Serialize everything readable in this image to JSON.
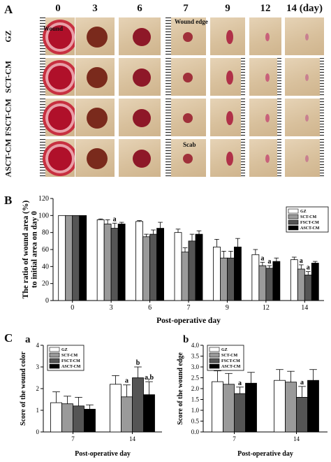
{
  "panel_a": {
    "letter": "A",
    "days": [
      "0",
      "3",
      "6",
      "7",
      "9",
      "12",
      "14 (day)"
    ],
    "rows": [
      "GZ",
      "SCT-CM",
      "FSCT-CM",
      "ASCT-CM"
    ],
    "annotations": {
      "wound": "Wound",
      "wound_edge": "Wound edge",
      "scab": "Scab"
    }
  },
  "panel_b": {
    "letter": "B"
  },
  "panel_c": {
    "letter": "C",
    "sub_a": "a",
    "sub_b": "b"
  },
  "colors": {
    "GZ": "#ffffff",
    "SCT-CM": "#9a9a9a",
    "FSCT-CM": "#555555",
    "ASCT-CM": "#000000"
  },
  "chart_data": [
    {
      "id": "B",
      "type": "bar",
      "categories": [
        "0",
        "3",
        "6",
        "7",
        "9",
        "12",
        "14"
      ],
      "series": [
        {
          "name": "GZ",
          "values": [
            100,
            95,
            93,
            80,
            63,
            54,
            48
          ],
          "errors": [
            0,
            1,
            1,
            4,
            9,
            6,
            3
          ]
        },
        {
          "name": "SCT-CM",
          "values": [
            100,
            90,
            75,
            57,
            50,
            41,
            37
          ],
          "errors": [
            0,
            5,
            3,
            5,
            8,
            4,
            5
          ]
        },
        {
          "name": "FSCT-CM",
          "values": [
            100,
            85,
            78,
            70,
            50,
            38,
            30
          ],
          "errors": [
            0,
            6,
            5,
            8,
            8,
            3,
            4
          ]
        },
        {
          "name": "ASCT-CM",
          "values": [
            100,
            90,
            85,
            78,
            63,
            46,
            44
          ],
          "errors": [
            0,
            2,
            7,
            4,
            10,
            4,
            2
          ]
        }
      ],
      "annotations": [
        {
          "category": "3",
          "series": "FSCT-CM",
          "text": "a"
        },
        {
          "category": "12",
          "series": "SCT-CM",
          "text": "a"
        },
        {
          "category": "12",
          "series": "FSCT-CM",
          "text": "a"
        },
        {
          "category": "14",
          "series": "SCT-CM",
          "text": "a"
        },
        {
          "category": "14",
          "series": "FSCT-CM",
          "text": "a"
        }
      ],
      "xlabel": "Post-operative day",
      "ylabel_lines": [
        "The ratio of wound area (%)",
        "to initial area on day 0"
      ],
      "ylim": [
        0,
        120
      ],
      "yticks": [
        0,
        20,
        40,
        60,
        80,
        100,
        120
      ],
      "legend": "top-right"
    },
    {
      "id": "Ca",
      "type": "bar",
      "categories": [
        "7",
        "14"
      ],
      "series": [
        {
          "name": "GZ",
          "values": [
            1.35,
            2.2
          ],
          "errors": [
            0.5,
            0.4
          ]
        },
        {
          "name": "SCT-CM",
          "values": [
            1.3,
            1.62
          ],
          "errors": [
            0.35,
            0.55
          ]
        },
        {
          "name": "FSCT-CM",
          "values": [
            1.2,
            2.5
          ],
          "errors": [
            0.4,
            0.5
          ]
        },
        {
          "name": "ASCT-CM",
          "values": [
            1.05,
            1.72
          ],
          "errors": [
            0.2,
            0.6
          ]
        }
      ],
      "annotations": [
        {
          "category": "14",
          "series": "SCT-CM",
          "text": "a"
        },
        {
          "category": "14",
          "series": "FSCT-CM",
          "text": "b"
        },
        {
          "category": "14",
          "series": "ASCT-CM",
          "text": "a,b"
        }
      ],
      "xlabel": "Post-operative day",
      "ylabel": "Score of the wound color",
      "ylim": [
        0,
        4
      ],
      "yticks": [
        0,
        1,
        2,
        3,
        4
      ],
      "legend": "top-left"
    },
    {
      "id": "Cb",
      "type": "bar",
      "categories": [
        "7",
        "14"
      ],
      "series": [
        {
          "name": "GZ",
          "values": [
            2.32,
            2.38
          ],
          "errors": [
            0.5,
            0.5
          ]
        },
        {
          "name": "SCT-CM",
          "values": [
            2.2,
            2.3
          ],
          "errors": [
            0.5,
            0.5
          ]
        },
        {
          "name": "FSCT-CM",
          "values": [
            1.77,
            1.6
          ],
          "errors": [
            0.3,
            0.5
          ]
        },
        {
          "name": "ASCT-CM",
          "values": [
            2.25,
            2.38
          ],
          "errors": [
            0.5,
            0.5
          ]
        }
      ],
      "annotations": [
        {
          "category": "7",
          "series": "FSCT-CM",
          "text": "a"
        },
        {
          "category": "14",
          "series": "FSCT-CM",
          "text": "a"
        }
      ],
      "xlabel": "Post-operative day",
      "ylabel": "Score of the wound edge",
      "ylim": [
        0,
        4.0
      ],
      "yticks": [
        "0.0",
        "0.5",
        "1.0",
        "1.5",
        "2.0",
        "2.5",
        "3.0",
        "3.5",
        "4.0"
      ],
      "legend": "top-left"
    }
  ]
}
